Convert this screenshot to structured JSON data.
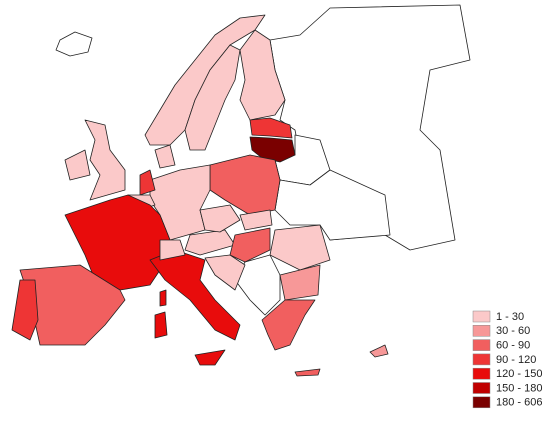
{
  "legend": {
    "items": [
      {
        "label": "1 - 30",
        "color": "#fbc9c9"
      },
      {
        "label": "30 - 60",
        "color": "#f79898"
      },
      {
        "label": "60 - 90",
        "color": "#f15f5f"
      },
      {
        "label": "90 - 120",
        "color": "#ee3535"
      },
      {
        "label": "120 - 150",
        "color": "#e80c0c"
      },
      {
        "label": "150 - 180",
        "color": "#c00000"
      },
      {
        "label": "180 - 606",
        "color": "#7a0000"
      }
    ]
  }
}
